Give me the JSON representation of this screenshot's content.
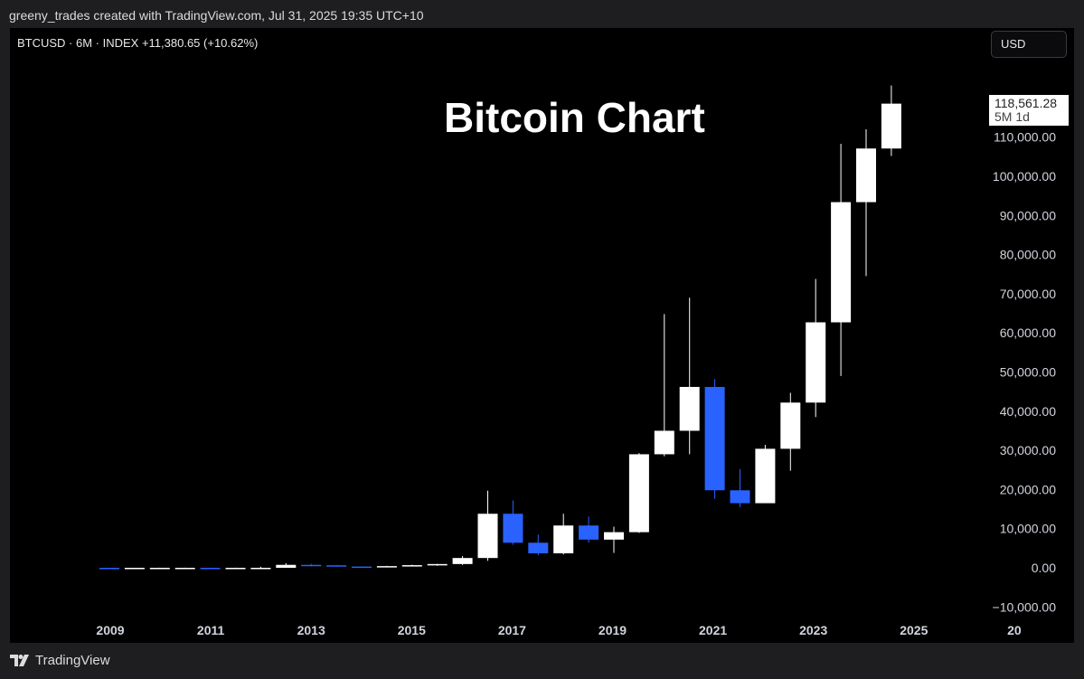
{
  "header": {
    "caption": "greeny_trades created with TradingView.com, Jul 31, 2025 19:35 UTC+10"
  },
  "chart_header": {
    "symbol": "BTCUSD · 6M · INDEX  +11,380.65 (+10.62%)",
    "currency": "USD"
  },
  "price_label": {
    "value": "118,561.28",
    "timeframe": "5M 1d"
  },
  "footer": {
    "brand": "TradingView"
  },
  "colors": {
    "up": "#ffffff",
    "down": "#2962ff",
    "background": "#000000",
    "frame": "#1e1e20",
    "axis_text": "#d1d4dc"
  },
  "chart_data": {
    "type": "candlestick",
    "title": "Bitcoin Chart",
    "xlabel": "",
    "ylabel": "",
    "ylim": [
      -10000,
      100000
    ],
    "y_ticks": [
      -10000,
      0,
      10000,
      20000,
      30000,
      40000,
      50000,
      60000,
      70000,
      80000,
      90000,
      100000,
      110000
    ],
    "y_tick_labels": [
      "−10,000.00",
      "0.00",
      "10,000.00",
      "20,000.00",
      "30,000.00",
      "40,000.00",
      "50,000.00",
      "60,000.00",
      "70,000.00",
      "80,000.00",
      "90,000.00",
      "100,000.00",
      "110,000.00"
    ],
    "x_ticks": [
      "2009",
      "2011",
      "2013",
      "2015",
      "2017",
      "2019",
      "2021",
      "2023",
      "2025",
      "20"
    ],
    "grid": false,
    "candles": [
      {
        "period": "2010 H1",
        "open": 0,
        "high": 0,
        "low": 0,
        "close": 0,
        "dir": "down"
      },
      {
        "period": "2010 H2",
        "open": 0,
        "high": 0,
        "low": 0,
        "close": 0,
        "dir": "up"
      },
      {
        "period": "2011 H1",
        "open": 0,
        "high": 30,
        "low": 0,
        "close": 0,
        "dir": "up"
      },
      {
        "period": "2011 H2",
        "open": 0,
        "high": 30,
        "low": 0,
        "close": 0,
        "dir": "up"
      },
      {
        "period": "2012 H1",
        "open": 0,
        "high": 10,
        "low": 0,
        "close": 0,
        "dir": "down"
      },
      {
        "period": "2012 H2",
        "open": 0,
        "high": 15,
        "low": 0,
        "close": 0,
        "dir": "up"
      },
      {
        "period": "2013 H1",
        "open": 0,
        "high": 260,
        "low": 0,
        "close": 0,
        "dir": "up"
      },
      {
        "period": "2013 H2",
        "open": 0,
        "high": 1200,
        "low": 0,
        "close": 750,
        "dir": "up"
      },
      {
        "period": "2014 H1",
        "open": 750,
        "high": 1000,
        "low": 350,
        "close": 640,
        "dir": "down"
      },
      {
        "period": "2014 H2",
        "open": 640,
        "high": 700,
        "low": 300,
        "close": 320,
        "dir": "down"
      },
      {
        "period": "2015 H1",
        "open": 320,
        "high": 320,
        "low": 160,
        "close": 260,
        "dir": "down"
      },
      {
        "period": "2015 H2",
        "open": 260,
        "high": 500,
        "low": 200,
        "close": 430,
        "dir": "up"
      },
      {
        "period": "2016 H1",
        "open": 430,
        "high": 780,
        "low": 350,
        "close": 670,
        "dir": "up"
      },
      {
        "period": "2016 H2",
        "open": 670,
        "high": 980,
        "low": 500,
        "close": 960,
        "dir": "up"
      },
      {
        "period": "2017 H1",
        "open": 960,
        "high": 3000,
        "low": 750,
        "close": 2500,
        "dir": "up"
      },
      {
        "period": "2017 H2",
        "open": 2500,
        "high": 19700,
        "low": 1800,
        "close": 13800,
        "dir": "up"
      },
      {
        "period": "2018 H1",
        "open": 13800,
        "high": 17200,
        "low": 5900,
        "close": 6400,
        "dir": "down"
      },
      {
        "period": "2018 H2",
        "open": 6400,
        "high": 8500,
        "low": 3200,
        "close": 3700,
        "dir": "down"
      },
      {
        "period": "2019 H1",
        "open": 3700,
        "high": 13800,
        "low": 3400,
        "close": 10800,
        "dir": "up"
      },
      {
        "period": "2019 H2",
        "open": 10800,
        "high": 13100,
        "low": 6400,
        "close": 7200,
        "dir": "down"
      },
      {
        "period": "2020 H1",
        "open": 7200,
        "high": 10500,
        "low": 3800,
        "close": 9100,
        "dir": "up"
      },
      {
        "period": "2020 H2",
        "open": 9100,
        "high": 29300,
        "low": 8900,
        "close": 29000,
        "dir": "up"
      },
      {
        "period": "2021 H1",
        "open": 29000,
        "high": 64800,
        "low": 28500,
        "close": 35000,
        "dir": "up"
      },
      {
        "period": "2021 H2",
        "open": 35000,
        "high": 69000,
        "low": 29000,
        "close": 46200,
        "dir": "up"
      },
      {
        "period": "2022 H1",
        "open": 46200,
        "high": 48200,
        "low": 17600,
        "close": 19800,
        "dir": "down"
      },
      {
        "period": "2022 H2",
        "open": 19800,
        "high": 25200,
        "low": 15500,
        "close": 16500,
        "dir": "down"
      },
      {
        "period": "2023 H1",
        "open": 16500,
        "high": 31400,
        "low": 16500,
        "close": 30400,
        "dir": "up"
      },
      {
        "period": "2023 H2",
        "open": 30400,
        "high": 44700,
        "low": 24800,
        "close": 42200,
        "dir": "up"
      },
      {
        "period": "2024 H1",
        "open": 42200,
        "high": 73800,
        "low": 38500,
        "close": 62700,
        "dir": "up"
      },
      {
        "period": "2024 H2",
        "open": 62700,
        "high": 108300,
        "low": 49000,
        "close": 93400,
        "dir": "up"
      },
      {
        "period": "2025 H1",
        "open": 93400,
        "high": 112000,
        "low": 74500,
        "close": 107100,
        "dir": "up"
      },
      {
        "period": "2025 H2",
        "open": 107100,
        "high": 123200,
        "low": 105200,
        "close": 118561.28,
        "dir": "up"
      }
    ]
  }
}
